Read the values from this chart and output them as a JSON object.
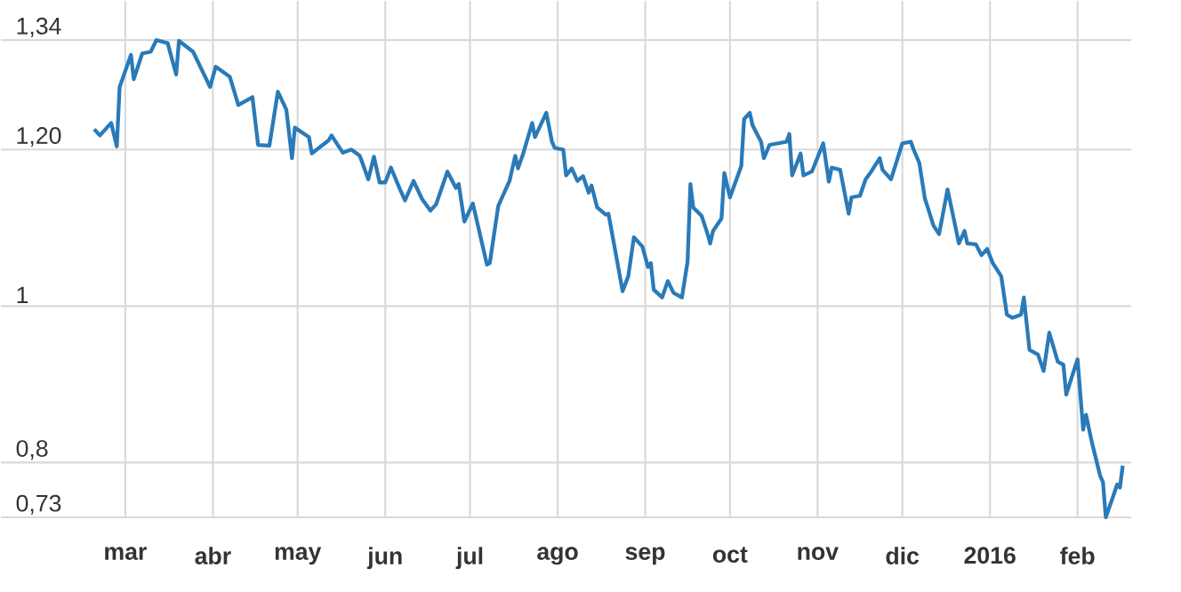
{
  "chart_data": {
    "type": "line",
    "x": [
      "2015-02-18",
      "2015-02-20",
      "2015-02-24",
      "2015-02-26",
      "2015-02-27",
      "2015-03-03",
      "2015-03-04",
      "2015-03-07",
      "2015-03-10",
      "2015-03-12",
      "2015-03-16",
      "2015-03-19",
      "2015-03-20",
      "2015-03-25",
      "2015-03-31",
      "2015-04-02",
      "2015-04-07",
      "2015-04-10",
      "2015-04-15",
      "2015-04-17",
      "2015-04-21",
      "2015-04-24",
      "2015-04-27",
      "2015-04-29",
      "2015-04-30",
      "2015-05-05",
      "2015-05-06",
      "2015-05-12",
      "2015-05-13",
      "2015-05-17",
      "2015-05-20",
      "2015-05-23",
      "2015-05-26",
      "2015-05-28",
      "2015-05-30",
      "2015-06-01",
      "2015-06-03",
      "2015-06-06",
      "2015-06-08",
      "2015-06-11",
      "2015-06-14",
      "2015-06-17",
      "2015-06-19",
      "2015-06-23",
      "2015-06-26",
      "2015-06-27",
      "2015-06-29",
      "2015-07-02",
      "2015-07-07",
      "2015-07-08",
      "2015-07-11",
      "2015-07-15",
      "2015-07-17",
      "2015-07-18",
      "2015-07-20",
      "2015-07-23",
      "2015-07-24",
      "2015-07-28",
      "2015-07-30",
      "2015-07-31",
      "2015-08-03",
      "2015-08-04",
      "2015-08-06",
      "2015-08-08",
      "2015-08-10",
      "2015-08-12",
      "2015-08-13",
      "2015-08-15",
      "2015-08-18",
      "2015-08-19",
      "2015-08-24",
      "2015-08-26",
      "2015-08-28",
      "2015-08-31",
      "2015-09-02",
      "2015-09-03",
      "2015-09-04",
      "2015-09-07",
      "2015-09-09",
      "2015-09-11",
      "2015-09-14",
      "2015-09-16",
      "2015-09-17",
      "2015-09-18",
      "2015-09-21",
      "2015-09-23",
      "2015-09-24",
      "2015-09-25",
      "2015-09-28",
      "2015-09-29",
      "2015-10-01",
      "2015-10-05",
      "2015-10-06",
      "2015-10-08",
      "2015-10-09",
      "2015-10-12",
      "2015-10-13",
      "2015-10-15",
      "2015-10-21",
      "2015-10-22",
      "2015-10-23",
      "2015-10-26",
      "2015-10-27",
      "2015-10-30",
      "2015-11-03",
      "2015-11-05",
      "2015-11-06",
      "2015-11-09",
      "2015-11-12",
      "2015-11-13",
      "2015-11-16",
      "2015-11-18",
      "2015-11-20",
      "2015-11-23",
      "2015-11-24",
      "2015-11-27",
      "2015-12-01",
      "2015-12-04",
      "2015-12-05",
      "2015-12-07",
      "2015-12-09",
      "2015-12-10",
      "2015-12-12",
      "2015-12-14",
      "2015-12-17",
      "2015-12-19",
      "2015-12-21",
      "2015-12-23",
      "2015-12-24",
      "2015-12-27",
      "2015-12-29",
      "2015-12-31",
      "2016-01-02",
      "2016-01-05",
      "2016-01-07",
      "2016-01-09",
      "2016-01-12",
      "2016-01-13",
      "2016-01-15",
      "2016-01-18",
      "2016-01-20",
      "2016-01-22",
      "2016-01-25",
      "2016-01-27",
      "2016-01-28",
      "2016-02-01",
      "2016-02-03",
      "2016-02-04",
      "2016-02-06",
      "2016-02-09",
      "2016-02-10",
      "2016-02-11",
      "2016-02-14",
      "2016-02-15",
      "2016-02-16",
      "2016-02-17"
    ],
    "series": [
      {
        "color": "#2a7ab8",
        "values": [
          1.226,
          1.218,
          1.234,
          1.204,
          1.28,
          1.321,
          1.29,
          1.323,
          1.325,
          1.34,
          1.336,
          1.296,
          1.339,
          1.325,
          1.28,
          1.306,
          1.293,
          1.257,
          1.267,
          1.206,
          1.205,
          1.274,
          1.251,
          1.189,
          1.228,
          1.216,
          1.195,
          1.212,
          1.218,
          1.196,
          1.2,
          1.192,
          1.162,
          1.191,
          1.158,
          1.158,
          1.177,
          1.151,
          1.135,
          1.16,
          1.137,
          1.122,
          1.13,
          1.172,
          1.151,
          1.156,
          1.108,
          1.131,
          1.053,
          1.055,
          1.128,
          1.16,
          1.192,
          1.176,
          1.197,
          1.234,
          1.216,
          1.247,
          1.21,
          1.202,
          1.2,
          1.167,
          1.176,
          1.16,
          1.166,
          1.145,
          1.154,
          1.126,
          1.117,
          1.118,
          1.019,
          1.038,
          1.088,
          1.076,
          1.05,
          1.055,
          1.021,
          1.011,
          1.032,
          1.017,
          1.011,
          1.057,
          1.156,
          1.126,
          1.115,
          1.093,
          1.08,
          1.096,
          1.112,
          1.17,
          1.139,
          1.179,
          1.239,
          1.247,
          1.231,
          1.21,
          1.189,
          1.206,
          1.21,
          1.22,
          1.167,
          1.195,
          1.167,
          1.172,
          1.208,
          1.159,
          1.177,
          1.174,
          1.118,
          1.139,
          1.141,
          1.162,
          1.172,
          1.189,
          1.174,
          1.162,
          1.208,
          1.21,
          1.2,
          1.183,
          1.137,
          1.126,
          1.103,
          1.092,
          1.149,
          1.115,
          1.08,
          1.096,
          1.08,
          1.079,
          1.065,
          1.073,
          1.055,
          1.038,
          0.989,
          0.985,
          0.989,
          1.011,
          0.944,
          0.938,
          0.917,
          0.966,
          0.929,
          0.925,
          0.887,
          0.932,
          0.842,
          0.861,
          0.827,
          0.783,
          0.775,
          0.73,
          0.761,
          0.772,
          0.768,
          0.796
        ]
      }
    ],
    "xlim": [
      "2015-01-16",
      "2016-02-20"
    ],
    "xticks": [
      {
        "value": "2015-03-01",
        "label": "mar"
      },
      {
        "value": "2015-04-01",
        "label": "abr"
      },
      {
        "value": "2015-05-01",
        "label": "may"
      },
      {
        "value": "2015-06-01",
        "label": "jun"
      },
      {
        "value": "2015-07-01",
        "label": "jul"
      },
      {
        "value": "2015-08-01",
        "label": "ago"
      },
      {
        "value": "2015-09-01",
        "label": "sep"
      },
      {
        "value": "2015-10-01",
        "label": "oct"
      },
      {
        "value": "2015-11-01",
        "label": "nov"
      },
      {
        "value": "2015-12-01",
        "label": "dic"
      },
      {
        "value": "2016-01-01",
        "label": "2016"
      },
      {
        "value": "2016-02-01",
        "label": "feb"
      }
    ],
    "ylim": [
      0.73,
      1.39
    ],
    "yticks": [
      {
        "value": 0.73,
        "label": "0,73"
      },
      {
        "value": 0.8,
        "label": "0,8"
      },
      1,
      {
        "value": 1.2,
        "label": "1,20"
      },
      {
        "value": 1.34,
        "label": "1,34"
      }
    ],
    "grid": true,
    "line_style": "solid"
  }
}
